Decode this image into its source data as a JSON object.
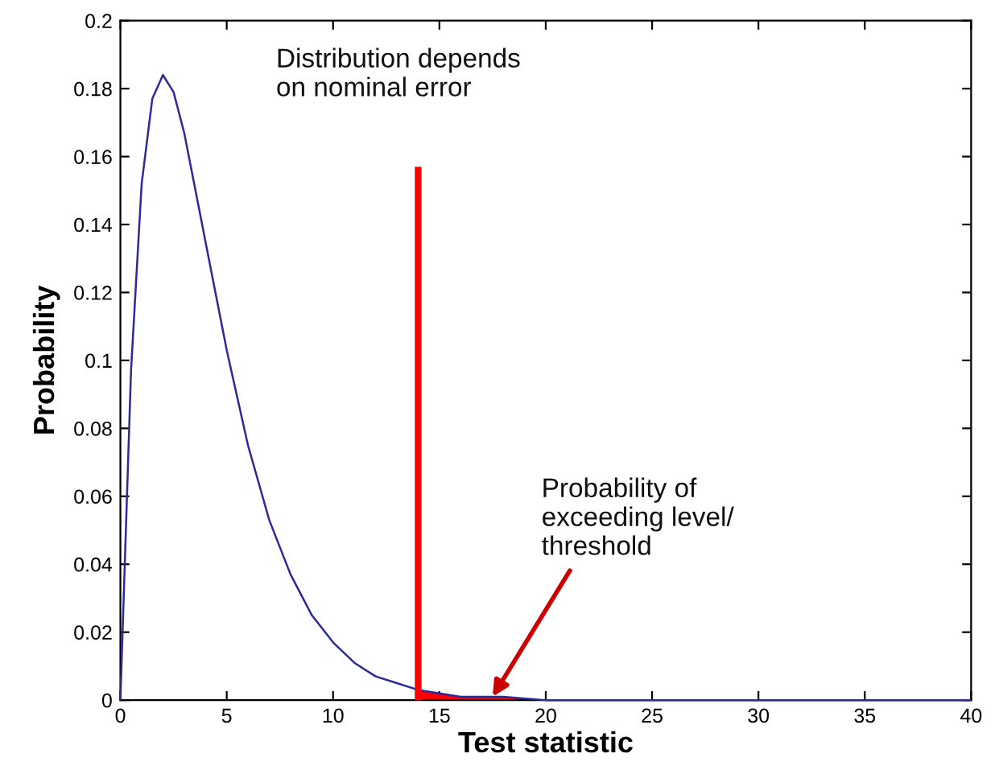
{
  "chart_data": {
    "type": "line",
    "xlabel": "Test statistic",
    "ylabel": "Probability",
    "xlim": [
      0,
      40
    ],
    "ylim": [
      0,
      0.2
    ],
    "xticks": [
      0,
      5,
      10,
      15,
      20,
      25,
      30,
      35,
      40
    ],
    "yticks": [
      0,
      0.02,
      0.04,
      0.06,
      0.08,
      0.1,
      0.12,
      0.14,
      0.16,
      0.18,
      0.2
    ],
    "grid": false,
    "legend": false,
    "series": [
      {
        "color": "#2a2a9a",
        "x": [
          0,
          0.5,
          1,
          1.5,
          2,
          2.5,
          3,
          4,
          5,
          6,
          7,
          8,
          9,
          10,
          11,
          12,
          13,
          14,
          16,
          18,
          20,
          25,
          30,
          40
        ],
        "values": [
          0,
          0.097,
          0.152,
          0.177,
          0.184,
          0.179,
          0.167,
          0.135,
          0.103,
          0.075,
          0.053,
          0.037,
          0.025,
          0.017,
          0.011,
          0.007,
          0.005,
          0.003,
          0.001,
          0.001,
          0,
          0,
          0,
          0
        ]
      },
      {
        "type": "area",
        "color": "#ff0000",
        "x": [
          14,
          16,
          18,
          20
        ],
        "values": [
          0.003,
          0.001,
          0.001,
          0
        ]
      },
      {
        "type": "line",
        "color": "#ff0000",
        "x": [
          14,
          14
        ],
        "values": [
          0,
          0.157
        ]
      }
    ],
    "annotations": [
      "Distribution depends\non nominal error",
      {
        "text": "Probability of\nexceeding level/\nthreshold",
        "x": 17.5,
        "y": 0.001
      }
    ]
  }
}
